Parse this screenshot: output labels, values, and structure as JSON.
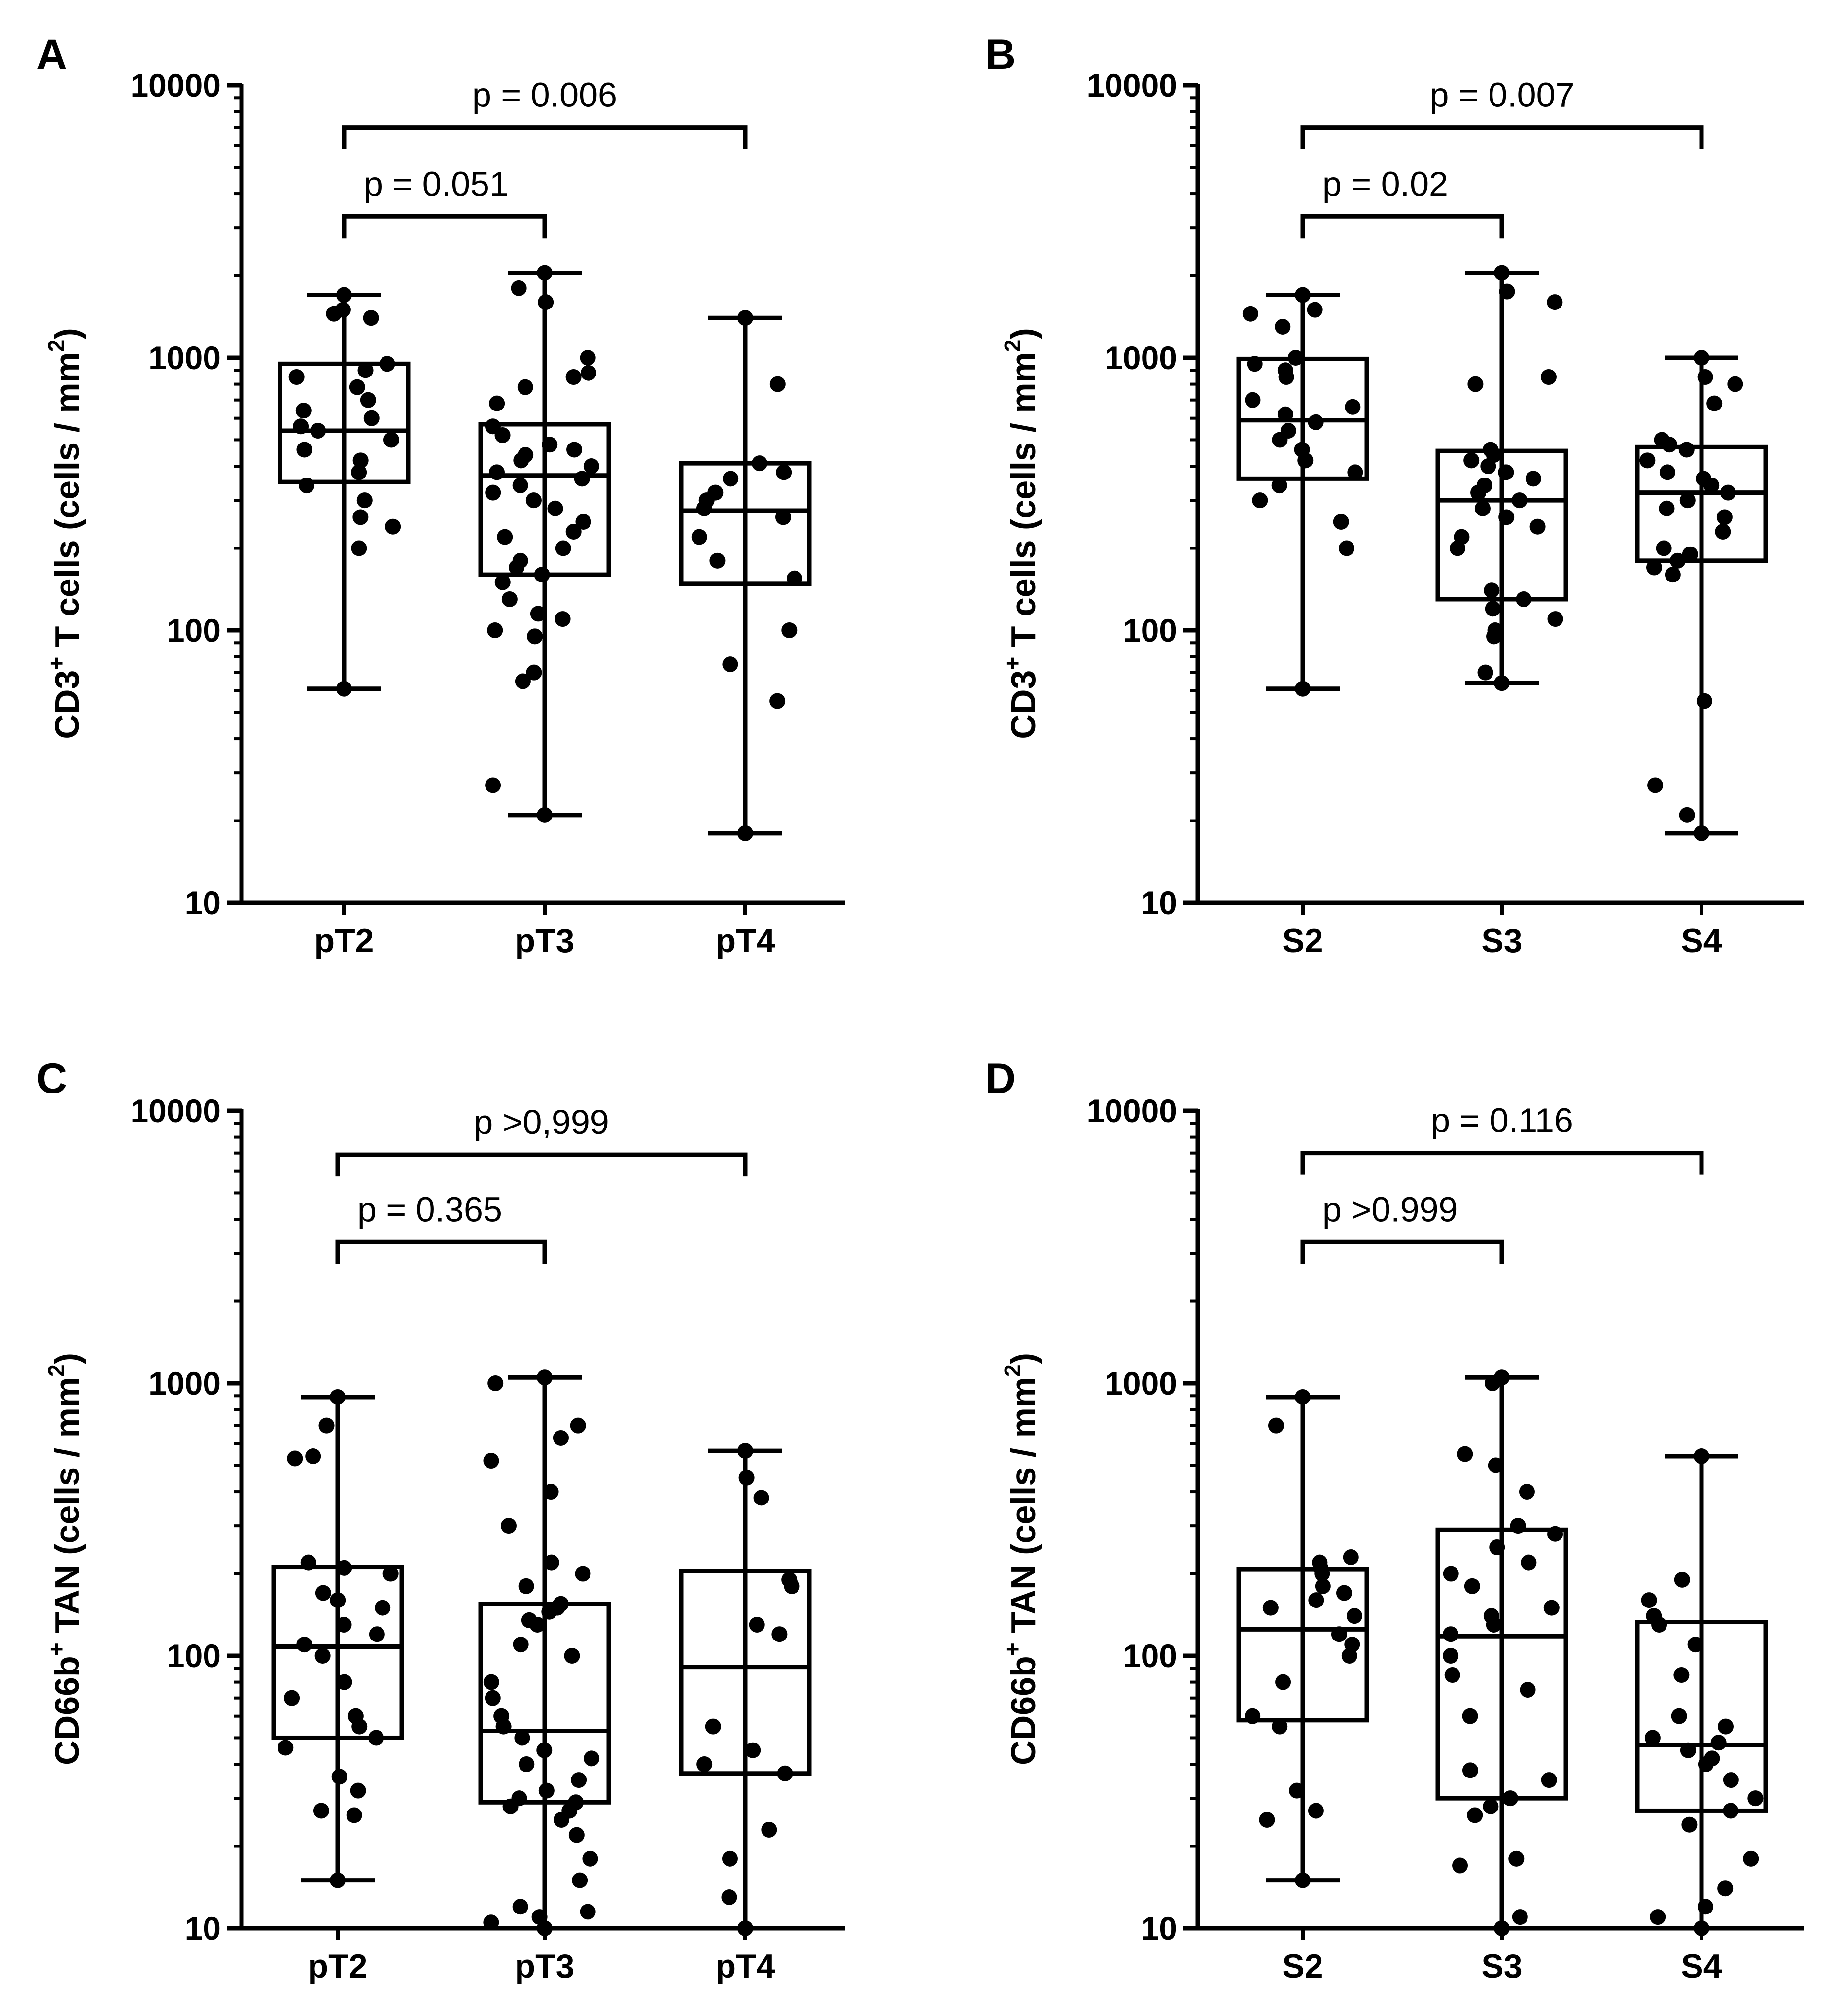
{
  "colors": {
    "ink": "#000000",
    "background": "#ffffff"
  },
  "chart_data": [
    {
      "panel": "A",
      "type": "box",
      "yscale": "log",
      "ylim": [
        10,
        10000
      ],
      "yticks": [
        "10",
        "100",
        "1000",
        "10000"
      ],
      "ylabel": {
        "pre": "CD3",
        "sup": "+",
        "mid": " T cells (cells / mm",
        "sup2": "2",
        "post": ")"
      },
      "categories": [
        "pT2",
        "pT3",
        "pT4"
      ],
      "boxes": [
        {
          "min": 61,
          "q1": 350,
          "median": 540,
          "q3": 950,
          "max": 1700
        },
        {
          "min": 21,
          "q1": 160,
          "median": 370,
          "q3": 570,
          "max": 2050
        },
        {
          "min": 18,
          "q1": 148,
          "median": 275,
          "q3": 410,
          "max": 1400
        }
      ],
      "points": [
        [
          61,
          200,
          240,
          260,
          300,
          340,
          380,
          420,
          460,
          500,
          540,
          560,
          600,
          640,
          700,
          780,
          850,
          900,
          950,
          1400,
          1450,
          1500,
          1700
        ],
        [
          21,
          27,
          65,
          70,
          95,
          100,
          110,
          115,
          130,
          150,
          160,
          170,
          180,
          200,
          220,
          230,
          250,
          280,
          300,
          320,
          340,
          360,
          380,
          400,
          420,
          440,
          460,
          480,
          520,
          560,
          680,
          780,
          850,
          880,
          1000,
          1600,
          1800,
          2050
        ],
        [
          18,
          55,
          75,
          100,
          155,
          180,
          220,
          260,
          280,
          300,
          320,
          360,
          380,
          410,
          800,
          1400
        ]
      ],
      "comparisons": [
        {
          "from": 0,
          "to": 1,
          "label": "p = 0.051",
          "y": 3300
        },
        {
          "from": 0,
          "to": 2,
          "label": "p = 0.006",
          "y": 7000
        }
      ]
    },
    {
      "panel": "B",
      "type": "box",
      "yscale": "log",
      "ylim": [
        10,
        10000
      ],
      "yticks": [
        "10",
        "100",
        "1000",
        "10000"
      ],
      "ylabel": {
        "pre": "CD3",
        "sup": "+",
        "mid": " T cells (cells / mm",
        "sup2": "2",
        "post": ")"
      },
      "categories": [
        "S2",
        "S3",
        "S4"
      ],
      "boxes": [
        {
          "min": 61,
          "q1": 360,
          "median": 590,
          "q3": 990,
          "max": 1700
        },
        {
          "min": 64,
          "q1": 130,
          "median": 300,
          "q3": 455,
          "max": 2050
        },
        {
          "min": 18,
          "q1": 180,
          "median": 320,
          "q3": 470,
          "max": 1000
        }
      ],
      "points": [
        [
          61,
          200,
          250,
          300,
          340,
          380,
          420,
          460,
          500,
          540,
          580,
          620,
          660,
          700,
          850,
          900,
          950,
          1000,
          1300,
          1450,
          1500,
          1700
        ],
        [
          64,
          70,
          95,
          100,
          110,
          120,
          130,
          140,
          200,
          220,
          240,
          260,
          280,
          300,
          320,
          340,
          360,
          380,
          400,
          420,
          440,
          460,
          800,
          850,
          1600,
          1750,
          2050
        ],
        [
          18,
          21,
          27,
          55,
          160,
          170,
          180,
          190,
          200,
          230,
          260,
          280,
          300,
          320,
          340,
          360,
          380,
          420,
          460,
          480,
          500,
          680,
          800,
          850,
          1000
        ]
      ],
      "comparisons": [
        {
          "from": 0,
          "to": 1,
          "label": "p = 0.02",
          "y": 3300
        },
        {
          "from": 0,
          "to": 2,
          "label": "p = 0.007",
          "y": 7000
        }
      ]
    },
    {
      "panel": "C",
      "type": "box",
      "yscale": "log",
      "ylim": [
        10,
        10000
      ],
      "yticks": [
        "10",
        "100",
        "1000",
        "10000"
      ],
      "ylabel": {
        "pre": "CD66b",
        "sup": "+",
        "mid": " TAN (cells / mm",
        "sup2": "2",
        "post": ")"
      },
      "categories": [
        "pT2",
        "pT3",
        "pT4"
      ],
      "boxes": [
        {
          "min": 15,
          "q1": 50,
          "median": 108,
          "q3": 212,
          "max": 890
        },
        {
          "min": 10,
          "q1": 29,
          "median": 53,
          "q3": 155,
          "max": 1050
        },
        {
          "min": 10,
          "q1": 37,
          "median": 91,
          "q3": 205,
          "max": 565
        }
      ],
      "points": [
        [
          15,
          26,
          27,
          32,
          36,
          46,
          50,
          55,
          60,
          70,
          80,
          100,
          110,
          120,
          130,
          150,
          160,
          170,
          200,
          210,
          220,
          530,
          540,
          700,
          890
        ],
        [
          10,
          10.5,
          11,
          11.5,
          12,
          15,
          18,
          22,
          25,
          27,
          28,
          29,
          30,
          32,
          35,
          40,
          42,
          45,
          50,
          55,
          60,
          70,
          80,
          100,
          110,
          130,
          135,
          145,
          150,
          155,
          180,
          200,
          220,
          300,
          400,
          520,
          630,
          700,
          1000,
          1050
        ],
        [
          10,
          13,
          18,
          23,
          37,
          40,
          45,
          55,
          120,
          130,
          180,
          190,
          380,
          450,
          565
        ]
      ],
      "comparisons": [
        {
          "from": 0,
          "to": 1,
          "label": "p = 0.365",
          "y": 3300
        },
        {
          "from": 0,
          "to": 2,
          "label": "p  >0,999",
          "y": 6900
        }
      ]
    },
    {
      "panel": "D",
      "type": "box",
      "yscale": "log",
      "ylim": [
        10,
        10000
      ],
      "yticks": [
        "10",
        "100",
        "1000",
        "10000"
      ],
      "ylabel": {
        "pre": "CD66b",
        "sup": "+",
        "mid": " TAN (cells / mm",
        "sup2": "2",
        "post": ")"
      },
      "categories": [
        "S2",
        "S3",
        "S4"
      ],
      "boxes": [
        {
          "min": 15,
          "q1": 58,
          "median": 125,
          "q3": 208,
          "max": 890
        },
        {
          "min": 10,
          "q1": 30,
          "median": 118,
          "q3": 290,
          "max": 1050
        },
        {
          "min": 10,
          "q1": 27,
          "median": 47,
          "q3": 133,
          "max": 540
        }
      ],
      "points": [
        [
          15,
          25,
          27,
          32,
          55,
          60,
          80,
          100,
          110,
          120,
          140,
          150,
          160,
          170,
          180,
          200,
          210,
          220,
          230,
          700,
          890
        ],
        [
          10,
          11,
          17,
          18,
          26,
          28,
          30,
          35,
          38,
          60,
          75,
          85,
          100,
          120,
          130,
          140,
          150,
          180,
          200,
          220,
          250,
          280,
          300,
          400,
          500,
          550,
          1000,
          1050
        ],
        [
          10,
          11,
          12,
          14,
          18,
          24,
          27,
          30,
          35,
          40,
          42,
          45,
          48,
          50,
          55,
          60,
          85,
          110,
          130,
          140,
          160,
          190,
          540
        ]
      ],
      "comparisons": [
        {
          "from": 0,
          "to": 1,
          "label": "p >0.999",
          "y": 3300
        },
        {
          "from": 0,
          "to": 2,
          "label": "p = 0.116",
          "y": 7000
        }
      ]
    }
  ]
}
